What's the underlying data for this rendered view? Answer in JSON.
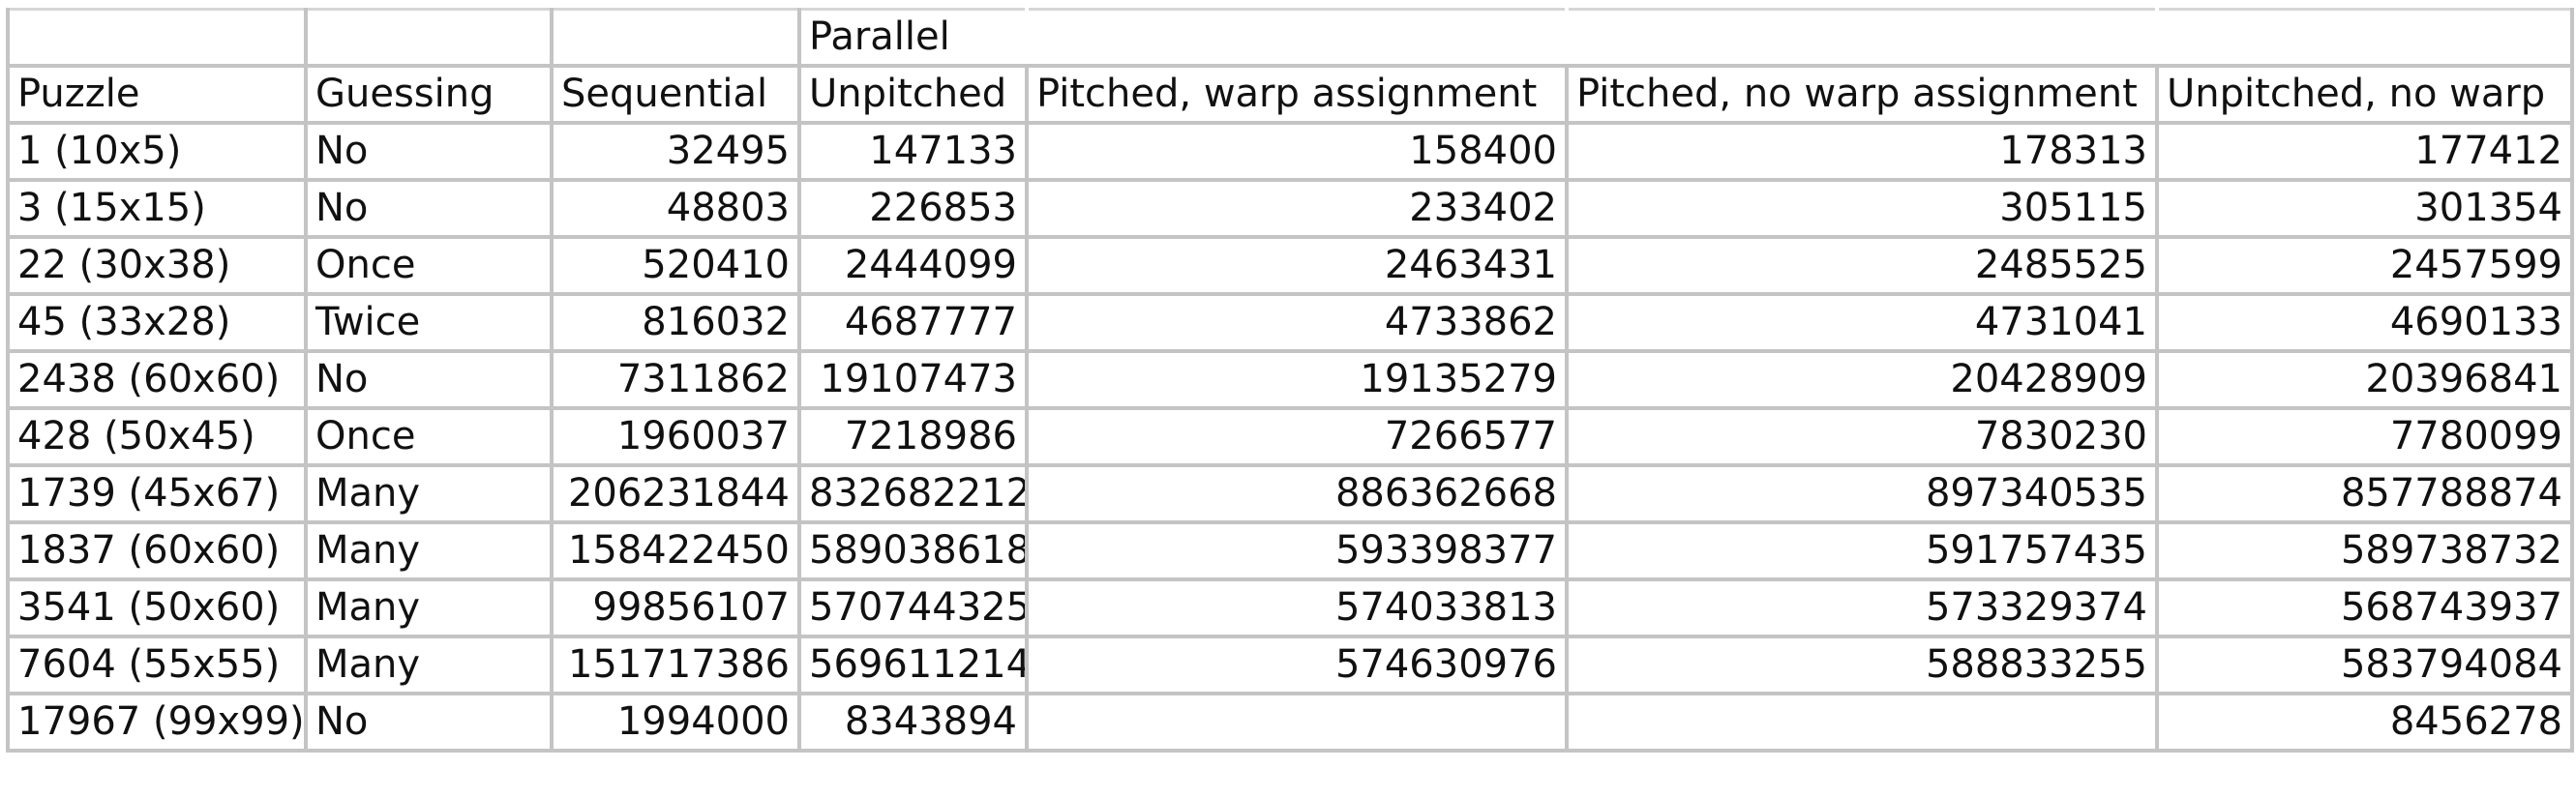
{
  "group_header": {
    "label": "Parallel"
  },
  "headers": {
    "puzzle": "Puzzle",
    "guessing": "Guessing",
    "sequential": "Sequential",
    "unpitched": "Unpitched",
    "pitched_warp": "Pitched, warp assignment",
    "pitched_no_warp": "Pitched, no warp assignment",
    "unpitched_no_warp": "Unpitched, no warp"
  },
  "rows": [
    {
      "puzzle": "1 (10x5)",
      "guessing": "No",
      "sequential": "32495",
      "unpitched": "147133",
      "pitched_warp": "158400",
      "pitched_no_warp": "178313",
      "unpitched_no_warp": "177412"
    },
    {
      "puzzle": "3 (15x15)",
      "guessing": "No",
      "sequential": "48803",
      "unpitched": "226853",
      "pitched_warp": "233402",
      "pitched_no_warp": "305115",
      "unpitched_no_warp": "301354"
    },
    {
      "puzzle": "22 (30x38)",
      "guessing": "Once",
      "sequential": "520410",
      "unpitched": "2444099",
      "pitched_warp": "2463431",
      "pitched_no_warp": "2485525",
      "unpitched_no_warp": "2457599"
    },
    {
      "puzzle": "45 (33x28)",
      "guessing": "Twice",
      "sequential": "816032",
      "unpitched": "4687777",
      "pitched_warp": "4733862",
      "pitched_no_warp": "4731041",
      "unpitched_no_warp": "4690133"
    },
    {
      "puzzle": "2438 (60x60)",
      "guessing": "No",
      "sequential": "7311862",
      "unpitched": "19107473",
      "pitched_warp": "19135279",
      "pitched_no_warp": "20428909",
      "unpitched_no_warp": "20396841"
    },
    {
      "puzzle": "428 (50x45)",
      "guessing": "Once",
      "sequential": "1960037",
      "unpitched": "7218986",
      "pitched_warp": "7266577",
      "pitched_no_warp": "7830230",
      "unpitched_no_warp": "7780099"
    },
    {
      "puzzle": "1739 (45x67)",
      "guessing": "Many",
      "sequential": "206231844",
      "unpitched": "832682212",
      "pitched_warp": "886362668",
      "pitched_no_warp": "897340535",
      "unpitched_no_warp": "857788874"
    },
    {
      "puzzle": "1837 (60x60)",
      "guessing": "Many",
      "sequential": "158422450",
      "unpitched": "589038618",
      "pitched_warp": "593398377",
      "pitched_no_warp": "591757435",
      "unpitched_no_warp": "589738732"
    },
    {
      "puzzle": "3541 (50x60)",
      "guessing": "Many",
      "sequential": "99856107",
      "unpitched": "570744325",
      "pitched_warp": "574033813",
      "pitched_no_warp": "573329374",
      "unpitched_no_warp": "568743937"
    },
    {
      "puzzle": "7604 (55x55)",
      "guessing": "Many",
      "sequential": "151717386",
      "unpitched": "569611214",
      "pitched_warp": "574630976",
      "pitched_no_warp": "588833255",
      "unpitched_no_warp": "583794084"
    },
    {
      "puzzle": "17967 (99x99)",
      "guessing": "No",
      "sequential": "1994000",
      "unpitched": "8343894",
      "pitched_warp": "",
      "pitched_no_warp": "",
      "unpitched_no_warp": "8456278"
    }
  ]
}
